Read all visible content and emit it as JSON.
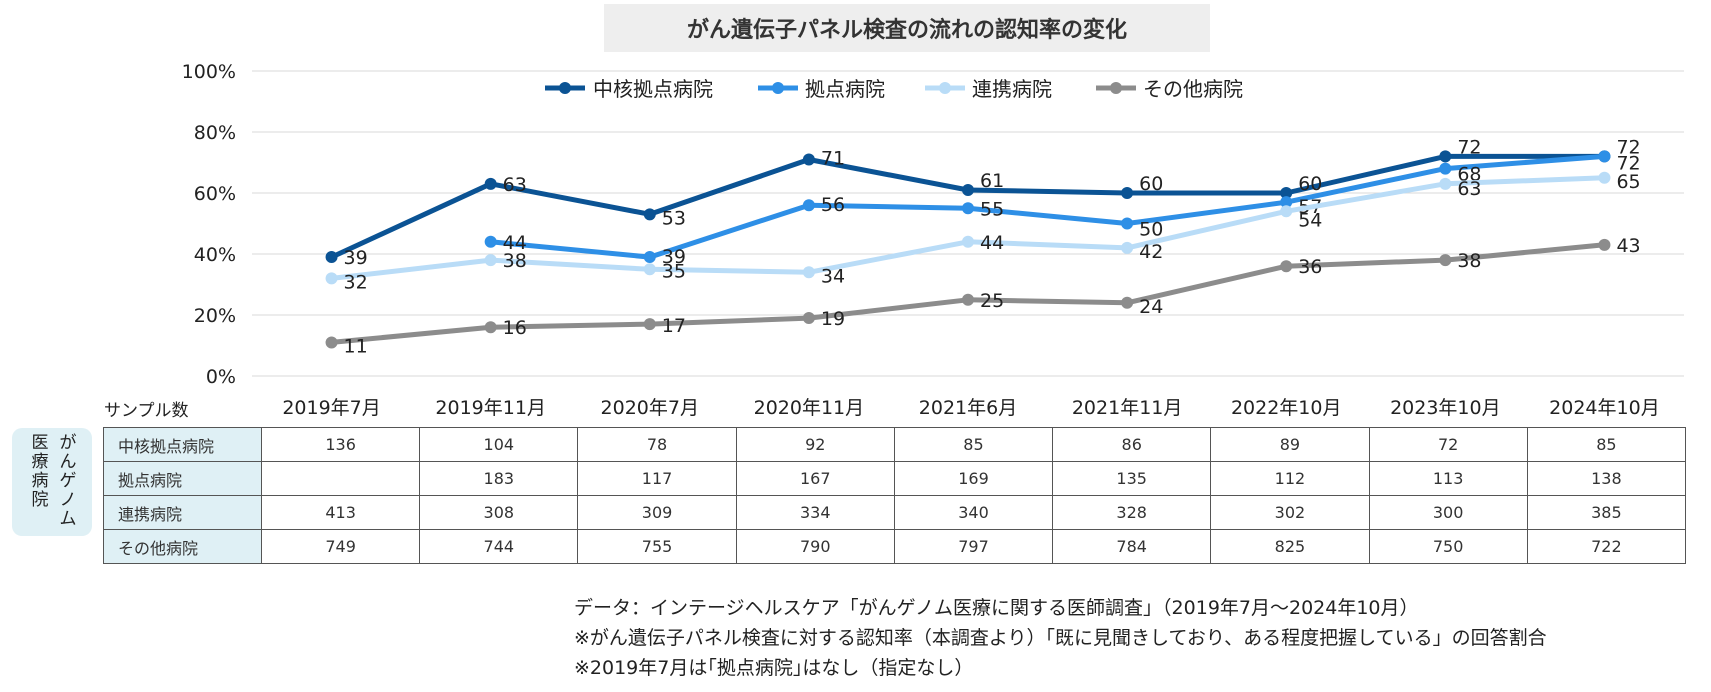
{
  "title": "がん遺伝子パネル検査の流れの認知率の変化",
  "chart_data": {
    "type": "line",
    "title": "がん遺伝子パネル検査の流れの認知率の変化",
    "categories": [
      "2019年7月",
      "2019年11月",
      "2020年7月",
      "2020年11月",
      "2021年6月",
      "2021年11月",
      "2022年10月",
      "2023年10月",
      "2024年10月"
    ],
    "y_ticks": [
      "0%",
      "20%",
      "40%",
      "60%",
      "80%",
      "100%"
    ],
    "ylim": [
      0,
      100
    ],
    "ylabel": "",
    "xlabel": "",
    "legend_position": "top",
    "grid": true,
    "series": [
      {
        "name": "中核拠点病院",
        "color": "#0b5394",
        "values": [
          39,
          63,
          53,
          71,
          61,
          60,
          60,
          72,
          72
        ]
      },
      {
        "name": "拠点病院",
        "color": "#2e8fe6",
        "values": [
          null,
          44,
          39,
          56,
          55,
          50,
          57,
          68,
          72
        ]
      },
      {
        "name": "連携病院",
        "color": "#b9dcf7",
        "values": [
          32,
          38,
          35,
          34,
          44,
          42,
          54,
          63,
          65
        ]
      },
      {
        "name": "その他病院",
        "color": "#8c8c8c",
        "values": [
          11,
          16,
          17,
          19,
          25,
          24,
          36,
          38,
          43
        ]
      }
    ]
  },
  "sample_table": {
    "label": "サンプル数",
    "group_label_line1": "がんゲノム",
    "group_label_line2": "医療病院",
    "rows": [
      {
        "name": "中核拠点病院",
        "values": [
          "136",
          "104",
          "78",
          "92",
          "85",
          "86",
          "89",
          "72",
          "85"
        ]
      },
      {
        "name": "拠点病院",
        "values": [
          "",
          "183",
          "117",
          "167",
          "169",
          "135",
          "112",
          "113",
          "138"
        ]
      },
      {
        "name": "連携病院",
        "values": [
          "413",
          "308",
          "309",
          "334",
          "340",
          "328",
          "302",
          "300",
          "385"
        ]
      },
      {
        "name": "その他病院",
        "values": [
          "749",
          "744",
          "755",
          "790",
          "797",
          "784",
          "825",
          "750",
          "722"
        ]
      }
    ]
  },
  "notes": [
    "データ：インテージヘルスケア「がんゲノム医療に関する医師調査」（2019年7月～2024年10月）",
    "※がん遺伝子パネル検査に対する認知率（本調査より）「既に見聞きしており、ある程度把握している」の回答割合",
    "※2019年7月は｢拠点病院｣はなし（指定なし）"
  ]
}
